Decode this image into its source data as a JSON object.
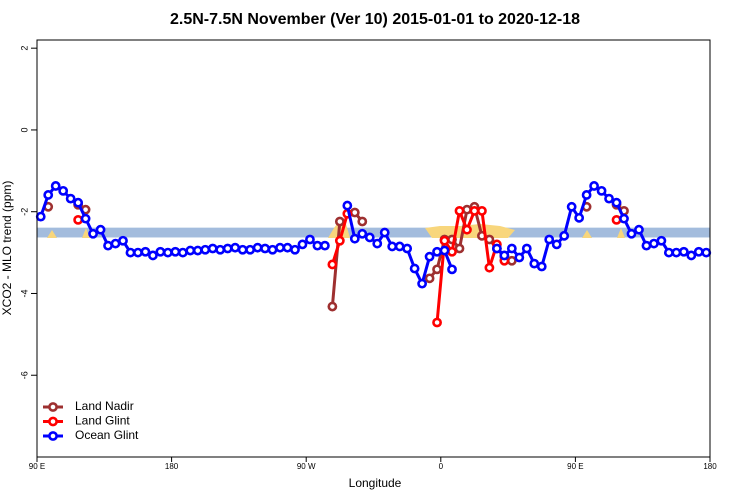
{
  "chart_data": {
    "type": "line",
    "title": "2.5N-7.5N November (Ver 10)   2015-01-01 to 2020-12-18",
    "xlabel": "Longitude",
    "ylabel": "XCO2 - MLO trend (ppm)",
    "xlim": [
      90,
      540
    ],
    "ylim": [
      -8,
      2.2
    ],
    "xticks": [
      {
        "value": 90,
        "label": "90 E"
      },
      180,
      {
        "value": 270,
        "label": "90 W"
      },
      {
        "value": 360,
        "label": "0"
      },
      {
        "value": 450,
        "label": "90 E"
      },
      {
        "value": 540,
        "label": "180"
      }
    ],
    "yticks": [
      2,
      0,
      -2,
      -4,
      -6
    ],
    "band": [
      -2.63,
      -2.39
    ],
    "band_color": "#a3bcdd",
    "legend": "bottom-left",
    "x": [
      92.5,
      97.5,
      102.5,
      107.5,
      112.5,
      117.5,
      122.5,
      127.5,
      132.5,
      137.5,
      142.5,
      147.5,
      152.5,
      157.5,
      162.5,
      167.5,
      172.5,
      177.5,
      182.5,
      187.5,
      192.5,
      197.5,
      202.5,
      207.5,
      212.5,
      217.5,
      222.5,
      227.5,
      232.5,
      237.5,
      242.5,
      247.5,
      252.5,
      257.5,
      262.5,
      267.5,
      272.5,
      277.5,
      282.5,
      287.5,
      292.5,
      297.5,
      302.5,
      307.5,
      312.5,
      317.5,
      322.5,
      327.5,
      332.5,
      337.5,
      342.5,
      347.5,
      352.5,
      357.5,
      362.5,
      367.5,
      372.5,
      377.5,
      382.5,
      387.5,
      392.5,
      397.5,
      402.5,
      407.5,
      412.5,
      417.5,
      422.5,
      427.5,
      432.5,
      437.5,
      442.5,
      447.5,
      452.5,
      457.5,
      462.5,
      467.5,
      472.5,
      477.5,
      482.5,
      487.5,
      492.5,
      497.5,
      502.5,
      507.5,
      512.5,
      517.5,
      522.5,
      527.5,
      532.5,
      537.5
    ],
    "series": [
      {
        "name": "Land Nadir",
        "color": "#9e3030",
        "values": [
          null,
          -1.88,
          null,
          null,
          null,
          -1.83,
          -1.95,
          null,
          null,
          null,
          null,
          null,
          null,
          null,
          null,
          null,
          null,
          null,
          null,
          null,
          null,
          null,
          null,
          null,
          null,
          null,
          null,
          null,
          null,
          null,
          null,
          null,
          null,
          null,
          null,
          null,
          null,
          null,
          null,
          -4.32,
          -2.24,
          null,
          -2.02,
          -2.24,
          null,
          null,
          null,
          null,
          null,
          null,
          null,
          null,
          -3.63,
          -3.41,
          -2.68,
          -2.68,
          -2.9,
          -1.95,
          -1.88,
          -2.59,
          -2.68,
          -2.9,
          -3.1,
          -3.2,
          null,
          null,
          null,
          null,
          null,
          null,
          null,
          null,
          null,
          -1.88,
          null,
          null,
          null,
          -1.83,
          -1.98,
          null,
          null,
          null,
          null,
          null,
          null,
          null,
          null,
          null,
          null,
          null
        ]
      },
      {
        "name": "Land Glint",
        "color": "#ff0000",
        "values": [
          null,
          null,
          null,
          null,
          null,
          -2.2,
          null,
          null,
          null,
          null,
          null,
          null,
          null,
          null,
          null,
          null,
          null,
          null,
          null,
          null,
          null,
          null,
          null,
          null,
          null,
          null,
          null,
          null,
          null,
          null,
          null,
          null,
          null,
          null,
          null,
          null,
          null,
          null,
          null,
          -3.29,
          -2.71,
          -2.05,
          null,
          null,
          null,
          null,
          null,
          null,
          null,
          null,
          null,
          null,
          null,
          -4.71,
          -2.71,
          -2.98,
          -1.98,
          -2.44,
          -1.98,
          -1.98,
          -3.37,
          -2.8,
          -3.2,
          null,
          null,
          null,
          null,
          null,
          null,
          null,
          null,
          null,
          null,
          null,
          null,
          null,
          null,
          -2.2,
          null,
          null,
          null,
          null,
          null,
          null,
          null,
          null,
          null,
          null,
          null,
          null
        ]
      },
      {
        "name": "Ocean Glint",
        "color": "#0000ff",
        "values": [
          -2.12,
          -1.59,
          -1.37,
          -1.49,
          -1.68,
          -1.78,
          -2.17,
          -2.54,
          -2.44,
          -2.83,
          -2.78,
          -2.71,
          -3.0,
          -3.0,
          -2.98,
          -3.07,
          -2.98,
          -3.0,
          -2.98,
          -3.0,
          -2.95,
          -2.95,
          -2.93,
          -2.9,
          -2.93,
          -2.9,
          -2.88,
          -2.93,
          -2.93,
          -2.88,
          -2.9,
          -2.93,
          -2.88,
          -2.88,
          -2.93,
          -2.8,
          -2.68,
          -2.83,
          -2.83,
          null,
          null,
          -1.85,
          -2.66,
          -2.54,
          -2.63,
          -2.78,
          -2.51,
          -2.85,
          -2.85,
          -2.9,
          -3.39,
          -3.76,
          -3.1,
          -2.98,
          -2.95,
          -3.41,
          null,
          null,
          null,
          null,
          null,
          -2.9,
          -3.07,
          -2.9,
          -3.12,
          -2.9,
          -3.27,
          -3.34,
          -2.68,
          -2.8,
          -2.59,
          -1.88,
          -2.15,
          -1.59,
          -1.37,
          -1.49,
          -1.68,
          -1.78,
          -2.17,
          -2.54,
          -2.44,
          -2.83,
          -2.78,
          -2.71,
          -3.0,
          -3.0,
          -2.98,
          -3.07,
          -2.98,
          -3.0
        ]
      }
    ]
  }
}
